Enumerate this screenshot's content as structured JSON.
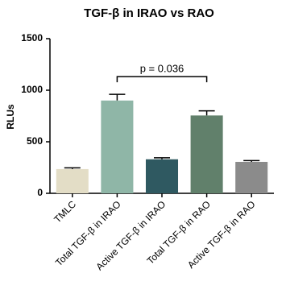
{
  "chart_data": {
    "type": "bar",
    "title": "TGF-β in IRAO vs RAO",
    "ylabel": "RLUs",
    "categories": [
      "TMLC",
      "Total TGF-β in IRAO",
      "Active TGF-β in IRAO",
      "Total TGF-β in RAO",
      "Active TGF-β in RAO"
    ],
    "values": [
      235,
      900,
      330,
      755,
      305
    ],
    "errors": [
      12,
      60,
      15,
      45,
      12
    ],
    "colors": [
      "#e3ddc6",
      "#8fb6a7",
      "#2f5961",
      "#61806b",
      "#8b8b8b"
    ],
    "annotation": "p = 0.036",
    "ylim": [
      0,
      1500
    ],
    "yticks": [
      0,
      500,
      1000,
      1500
    ],
    "grid": false
  }
}
